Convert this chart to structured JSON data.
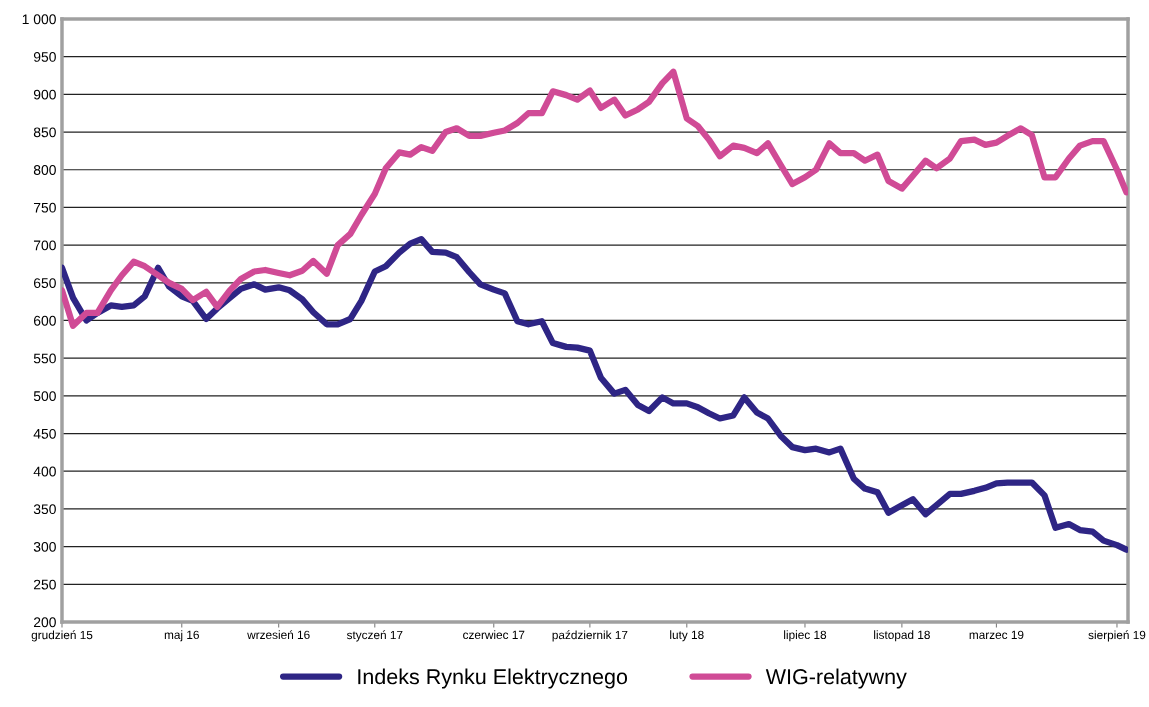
{
  "chart_data": {
    "type": "line",
    "x": [
      "2015-12-01",
      "2015-12-15",
      "2016-01-01",
      "2016-01-15",
      "2016-02-01",
      "2016-02-15",
      "2016-03-01",
      "2016-03-15",
      "2016-04-01",
      "2016-04-15",
      "2016-05-01",
      "2016-05-15",
      "2016-06-01",
      "2016-06-15",
      "2016-07-01",
      "2016-07-15",
      "2016-08-01",
      "2016-08-15",
      "2016-09-01",
      "2016-09-15",
      "2016-10-01",
      "2016-10-15",
      "2016-11-01",
      "2016-11-15",
      "2016-12-01",
      "2016-12-15",
      "2017-01-01",
      "2017-01-15",
      "2017-02-01",
      "2017-02-15",
      "2017-03-01",
      "2017-03-15",
      "2017-04-01",
      "2017-04-15",
      "2017-05-01",
      "2017-05-15",
      "2017-06-01",
      "2017-06-15",
      "2017-07-01",
      "2017-07-15",
      "2017-08-01",
      "2017-08-15",
      "2017-09-01",
      "2017-09-15",
      "2017-10-01",
      "2017-10-15",
      "2017-11-01",
      "2017-11-15",
      "2017-12-01",
      "2017-12-15",
      "2018-01-01",
      "2018-01-15",
      "2018-02-01",
      "2018-02-15",
      "2018-03-01",
      "2018-03-15",
      "2018-04-01",
      "2018-04-15",
      "2018-05-01",
      "2018-05-15",
      "2018-06-01",
      "2018-06-15",
      "2018-07-01",
      "2018-07-15",
      "2018-08-01",
      "2018-08-15",
      "2018-09-01",
      "2018-09-15",
      "2018-10-01",
      "2018-10-15",
      "2018-11-01",
      "2018-11-15",
      "2018-12-01",
      "2018-12-15",
      "2019-01-01",
      "2019-01-15",
      "2019-02-01",
      "2019-02-15",
      "2019-03-01",
      "2019-03-15",
      "2019-04-01",
      "2019-04-15",
      "2019-05-01",
      "2019-05-15",
      "2019-06-01",
      "2019-06-15",
      "2019-07-01",
      "2019-07-15",
      "2019-08-01",
      "2019-08-13"
    ],
    "series": [
      {
        "name": "Indeks Rynku Elektrycznego",
        "color": "#2e2585",
        "values": [
          670,
          630,
          600,
          610,
          620,
          618,
          620,
          632,
          670,
          645,
          632,
          626,
          602,
          616,
          630,
          642,
          648,
          641,
          644,
          640,
          628,
          611,
          595,
          595,
          602,
          626,
          665,
          672,
          690,
          702,
          708,
          691,
          690,
          684,
          664,
          648,
          641,
          636,
          599,
          595,
          599,
          570,
          565,
          564,
          560,
          524,
          503,
          508,
          488,
          480,
          498,
          490,
          490,
          485,
          477,
          470,
          474,
          498,
          478,
          470,
          446,
          432,
          428,
          430,
          425,
          430,
          390,
          377,
          372,
          345,
          355,
          363,
          343,
          355,
          370,
          370,
          374,
          378,
          384,
          385,
          385,
          385,
          368,
          325,
          330,
          322,
          320,
          308,
          302,
          296
        ]
      },
      {
        "name": "WIG-relatywny",
        "color": "#d04b96",
        "values": [
          640,
          593,
          610,
          610,
          640,
          660,
          678,
          672,
          660,
          650,
          642,
          627,
          638,
          618,
          640,
          655,
          665,
          667,
          663,
          660,
          666,
          679,
          662,
          700,
          715,
          740,
          768,
          802,
          823,
          820,
          830,
          825,
          850,
          855,
          845,
          845,
          849,
          852,
          862,
          875,
          875,
          904,
          899,
          893,
          905,
          882,
          893,
          872,
          880,
          890,
          915,
          930,
          868,
          858,
          840,
          818,
          832,
          829,
          822,
          835,
          805,
          781,
          790,
          800,
          835,
          822,
          822,
          812,
          820,
          785,
          775,
          792,
          812,
          802,
          815,
          838,
          840,
          833,
          836,
          845,
          855,
          846,
          790,
          790,
          815,
          832,
          838,
          838,
          800,
          770
        ]
      }
    ],
    "xlim": [
      "2015-12-01",
      "2019-08-15"
    ],
    "xticks": [
      {
        "value": "2015-12-01",
        "label": "grudzień 15"
      },
      {
        "value": "2016-05-01",
        "label": "maj 16"
      },
      {
        "value": "2016-09-01",
        "label": "wrzesień 16"
      },
      {
        "value": "2017-01-01",
        "label": "styczeń 17"
      },
      {
        "value": "2017-06-01",
        "label": "czerwiec 17"
      },
      {
        "value": "2017-10-01",
        "label": "październik 17"
      },
      {
        "value": "2018-02-01",
        "label": "luty 18"
      },
      {
        "value": "2018-07-01",
        "label": "lipiec 18"
      },
      {
        "value": "2018-11-01",
        "label": "listopad 18"
      },
      {
        "value": "2019-03-01",
        "label": "marzec 19"
      },
      {
        "value": "2019-08-01",
        "label": "sierpień 19"
      }
    ],
    "ylim": [
      200,
      1000
    ],
    "yticks": [
      200,
      250,
      300,
      350,
      400,
      450,
      500,
      550,
      600,
      650,
      700,
      750,
      800,
      850,
      900,
      950,
      {
        "value": 1000,
        "label": "1 000"
      }
    ],
    "grid": "y",
    "legend": "bottom",
    "line_style": "solid",
    "marker": "none"
  }
}
